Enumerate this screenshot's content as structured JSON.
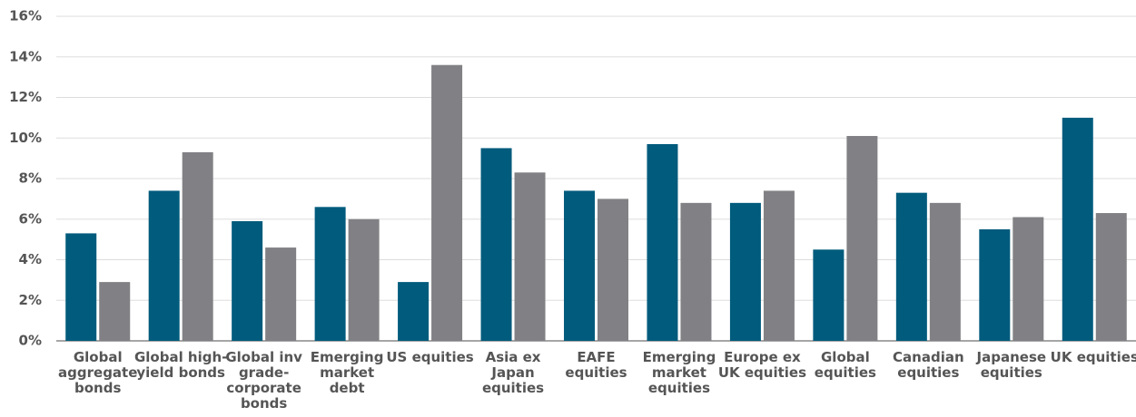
{
  "chart_data": {
    "type": "bar",
    "categories": [
      "Global aggregate bonds",
      "Global high-yield bonds",
      "Global inv grade-corporate bonds",
      "Emerging market debt",
      "US equities",
      "Asia ex Japan equities",
      "EAFE equities",
      "Emerging market equities",
      "Europe ex UK equities",
      "Global equities",
      "Canadian equities",
      "Japanese equities",
      "UK equities"
    ],
    "series": [
      {
        "color": "#005b7c",
        "values": [
          5.3,
          7.4,
          5.9,
          6.6,
          2.9,
          9.5,
          7.4,
          9.7,
          6.8,
          4.5,
          7.3,
          5.5,
          11.0
        ]
      },
      {
        "color": "#818185",
        "values": [
          2.9,
          9.3,
          4.6,
          6.0,
          13.6,
          8.3,
          7.0,
          6.8,
          7.4,
          10.1,
          6.8,
          6.1,
          6.3
        ]
      }
    ],
    "ylim": [
      0,
      16
    ],
    "yticks": [
      {
        "value": 0,
        "label": "0%"
      },
      {
        "value": 2,
        "label": "2%"
      },
      {
        "value": 4,
        "label": "4%"
      },
      {
        "value": 6,
        "label": "6%"
      },
      {
        "value": 8,
        "label": "8%"
      },
      {
        "value": 10,
        "label": "10%"
      },
      {
        "value": 12,
        "label": "12%"
      },
      {
        "value": 14,
        "label": "14%"
      },
      {
        "value": 16,
        "label": "16%"
      }
    ],
    "grid": true
  }
}
